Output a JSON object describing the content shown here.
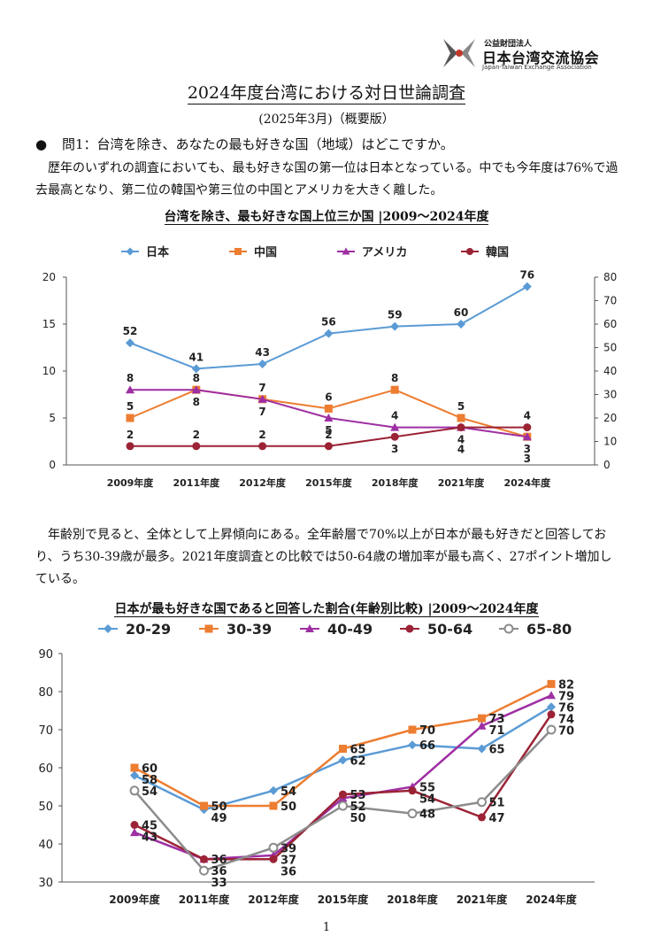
{
  "logo": {
    "org_small": "公益財団法人",
    "org_main": "日本台湾交流協会",
    "org_en": "Japan-Taiwan Exchange Association"
  },
  "title": "2024年度台湾における対日世論調査",
  "subtitle": "(2025年3月)（概要版）",
  "question": "問1：台湾を除き、あなたの最も好きな国（地域）はどこですか。",
  "paragraph1": "　歴年のいずれの調査においても、最も好きな国の第一位は日本となっている。中でも今年度は76%で過去最高となり、第二位の韓国や第三位の中国とアメリカを大きく離した。",
  "paragraph2": "　年齢別で見ると、全体として上昇傾向にある。全年齢層で70%以上が日本が最も好きだと回答しており、うち30-39歳が最多。2021年度調査との比較では50-64歳の増加率が最も高く、27ポイント増加している。",
  "page_number": "1",
  "colors": {
    "japan": "#5b9bd5",
    "china": "#ed7d31",
    "usa": "#9e2fa3",
    "korea": "#9b2335",
    "age2029": "#5b9bd5",
    "age3039": "#ed7d31",
    "age4049": "#9e2fa3",
    "age5064": "#9b2335",
    "age6580": "#8c8c8c"
  },
  "chart_data": [
    {
      "type": "line",
      "title": "台湾を除き、最も好きな国上位三か国 |2009～2024年度",
      "categories": [
        "2009年度",
        "2011年度",
        "2012年度",
        "2015年度",
        "2018年度",
        "2021年度",
        "2024年度"
      ],
      "left_axis": {
        "range": [
          0,
          20
        ],
        "ticks": [
          "0",
          "5",
          "10",
          "15",
          "20"
        ]
      },
      "right_axis": {
        "range": [
          0,
          80
        ],
        "ticks": [
          "0",
          "10",
          "20",
          "30",
          "40",
          "50",
          "60",
          "70",
          "80"
        ]
      },
      "legend_position": "top",
      "series": [
        {
          "name": "日本",
          "axis": "right",
          "marker": "diamond",
          "color_key": "japan",
          "values": [
            52,
            41,
            43,
            56,
            59,
            60,
            76
          ]
        },
        {
          "name": "中国",
          "axis": "left",
          "marker": "square",
          "color_key": "china",
          "values": [
            5,
            8,
            7,
            6,
            8,
            5,
            3
          ]
        },
        {
          "name": "アメリカ",
          "axis": "left",
          "marker": "triangle",
          "color_key": "usa",
          "values": [
            8,
            8,
            7,
            5,
            4,
            4,
            3
          ]
        },
        {
          "name": "韓国",
          "axis": "left",
          "marker": "circle",
          "color_key": "korea",
          "values": [
            2,
            2,
            2,
            2,
            3,
            4,
            4
          ]
        }
      ],
      "data_labels": [
        {
          "text": "52",
          "cat": 0,
          "val": 13.0,
          "pos": "above"
        },
        {
          "text": "41",
          "cat": 1,
          "val": 10.25,
          "pos": "above"
        },
        {
          "text": "43",
          "cat": 2,
          "val": 10.75,
          "pos": "above"
        },
        {
          "text": "56",
          "cat": 3,
          "val": 14.0,
          "pos": "above"
        },
        {
          "text": "59",
          "cat": 4,
          "val": 14.75,
          "pos": "above"
        },
        {
          "text": "60",
          "cat": 5,
          "val": 15.0,
          "pos": "above"
        },
        {
          "text": "76",
          "cat": 6,
          "val": 19.0,
          "pos": "above"
        },
        {
          "text": "5",
          "cat": 0,
          "val": 5,
          "pos": "above"
        },
        {
          "text": "8",
          "cat": 0,
          "val": 8,
          "pos": "above"
        },
        {
          "text": "2",
          "cat": 0,
          "val": 2,
          "pos": "above"
        },
        {
          "text": "8",
          "cat": 1,
          "val": 8,
          "pos": "above"
        },
        {
          "text": "8",
          "cat": 1,
          "val": 8,
          "pos": "below"
        },
        {
          "text": "2",
          "cat": 1,
          "val": 2,
          "pos": "above"
        },
        {
          "text": "7",
          "cat": 2,
          "val": 7,
          "pos": "above"
        },
        {
          "text": "7",
          "cat": 2,
          "val": 7,
          "pos": "below"
        },
        {
          "text": "2",
          "cat": 2,
          "val": 2,
          "pos": "above"
        },
        {
          "text": "6",
          "cat": 3,
          "val": 6,
          "pos": "above"
        },
        {
          "text": "5",
          "cat": 3,
          "val": 5,
          "pos": "below"
        },
        {
          "text": "2",
          "cat": 3,
          "val": 2,
          "pos": "above"
        },
        {
          "text": "8",
          "cat": 4,
          "val": 8,
          "pos": "above"
        },
        {
          "text": "4",
          "cat": 4,
          "val": 4,
          "pos": "above"
        },
        {
          "text": "3",
          "cat": 4,
          "val": 3,
          "pos": "below"
        },
        {
          "text": "5",
          "cat": 5,
          "val": 5,
          "pos": "above"
        },
        {
          "text": "4",
          "cat": 5,
          "val": 4,
          "pos": "below"
        },
        {
          "text": "4",
          "cat": 5,
          "val": 4,
          "pos": "below2"
        },
        {
          "text": "4",
          "cat": 6,
          "val": 4,
          "pos": "above"
        },
        {
          "text": "3",
          "cat": 6,
          "val": 3,
          "pos": "below"
        },
        {
          "text": "3",
          "cat": 6,
          "val": 3,
          "pos": "below2"
        }
      ]
    },
    {
      "type": "line",
      "title": "日本が最も好きな国であると回答した割合(年齢別比較) |2009～2024年度",
      "categories": [
        "2009年度",
        "2011年度",
        "2012年度",
        "2015年度",
        "2018年度",
        "2021年度",
        "2024年度"
      ],
      "y_axis": {
        "range": [
          30,
          90
        ],
        "ticks": [
          "30",
          "40",
          "50",
          "60",
          "70",
          "80",
          "90"
        ]
      },
      "legend_position": "top",
      "series": [
        {
          "name": "20-29",
          "marker": "diamond",
          "color_key": "age2029",
          "values": [
            58,
            49,
            54,
            62,
            66,
            65,
            76
          ]
        },
        {
          "name": "30-39",
          "marker": "square",
          "color_key": "age3039",
          "values": [
            60,
            50,
            50,
            65,
            70,
            73,
            82
          ]
        },
        {
          "name": "40-49",
          "marker": "triangle",
          "color_key": "age4049",
          "values": [
            43,
            36,
            37,
            52,
            55,
            71,
            79
          ]
        },
        {
          "name": "50-64",
          "marker": "circle",
          "color_key": "age5064",
          "values": [
            45,
            36,
            36,
            53,
            54,
            47,
            74
          ]
        },
        {
          "name": "65-80",
          "marker": "ring",
          "color_key": "age6580",
          "values": [
            54,
            33,
            39,
            50,
            48,
            51,
            70
          ]
        }
      ],
      "data_labels": [
        {
          "text": "60",
          "cat": 0,
          "val": 60
        },
        {
          "text": "58",
          "cat": 0,
          "val": 58
        },
        {
          "text": "54",
          "cat": 0,
          "val": 54
        },
        {
          "text": "45",
          "cat": 0,
          "val": 45
        },
        {
          "text": "43",
          "cat": 0,
          "val": 43
        },
        {
          "text": "50",
          "cat": 1,
          "val": 50
        },
        {
          "text": "49",
          "cat": 1,
          "val": 49
        },
        {
          "text": "36",
          "cat": 1,
          "val": 36
        },
        {
          "text": "36",
          "cat": 1,
          "val": 36
        },
        {
          "text": "33",
          "cat": 1,
          "val": 33
        },
        {
          "text": "54",
          "cat": 2,
          "val": 54
        },
        {
          "text": "50",
          "cat": 2,
          "val": 50
        },
        {
          "text": "39",
          "cat": 2,
          "val": 39
        },
        {
          "text": "37",
          "cat": 2,
          "val": 37
        },
        {
          "text": "36",
          "cat": 2,
          "val": 36
        },
        {
          "text": "65",
          "cat": 3,
          "val": 65
        },
        {
          "text": "62",
          "cat": 3,
          "val": 62
        },
        {
          "text": "53",
          "cat": 3,
          "val": 53
        },
        {
          "text": "52",
          "cat": 3,
          "val": 52
        },
        {
          "text": "50",
          "cat": 3,
          "val": 50
        },
        {
          "text": "70",
          "cat": 4,
          "val": 70
        },
        {
          "text": "66",
          "cat": 4,
          "val": 66
        },
        {
          "text": "55",
          "cat": 4,
          "val": 55
        },
        {
          "text": "54",
          "cat": 4,
          "val": 54
        },
        {
          "text": "48",
          "cat": 4,
          "val": 48
        },
        {
          "text": "73",
          "cat": 5,
          "val": 73
        },
        {
          "text": "71",
          "cat": 5,
          "val": 71
        },
        {
          "text": "65",
          "cat": 5,
          "val": 65
        },
        {
          "text": "51",
          "cat": 5,
          "val": 51
        },
        {
          "text": "47",
          "cat": 5,
          "val": 47
        },
        {
          "text": "82",
          "cat": 6,
          "val": 82
        },
        {
          "text": "79",
          "cat": 6,
          "val": 79
        },
        {
          "text": "76",
          "cat": 6,
          "val": 76
        },
        {
          "text": "74",
          "cat": 6,
          "val": 74
        },
        {
          "text": "70",
          "cat": 6,
          "val": 70
        }
      ]
    }
  ]
}
